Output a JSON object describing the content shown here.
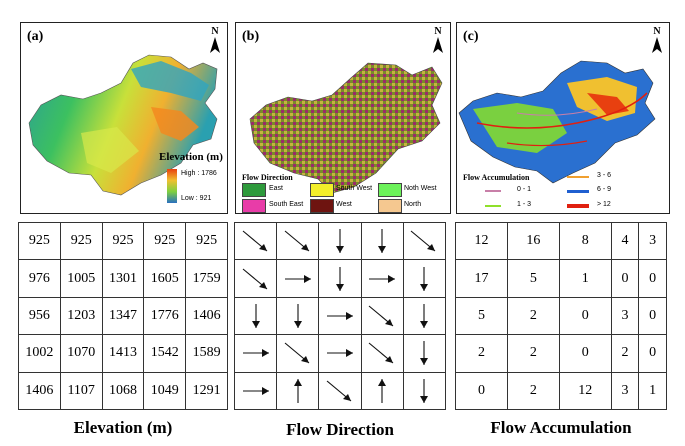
{
  "panel_a": {
    "label": "(a)",
    "north": "N",
    "legend": {
      "title": "Elevation (m)",
      "high": "High : 1786",
      "low": "Low : 921"
    }
  },
  "panel_b": {
    "label": "(b)",
    "north": "N",
    "legend": {
      "title": "Flow Direction",
      "items": [
        {
          "label": "East",
          "color": "#2e9a3c"
        },
        {
          "label": "South West",
          "color": "#f2ee2a"
        },
        {
          "label": "Noth West",
          "color": "#6cf25a"
        },
        {
          "label": "South East",
          "color": "#e83ca8"
        },
        {
          "label": "West",
          "color": "#6e1410"
        },
        {
          "label": "North",
          "color": "#f5c890"
        }
      ]
    }
  },
  "panel_c": {
    "label": "(c)",
    "north": "N",
    "legend": {
      "title": "Flow Accumulation",
      "items": [
        {
          "label": "0 - 1",
          "color": "#c87fa8"
        },
        {
          "label": "1 - 3",
          "color": "#8fe02a"
        },
        {
          "label": "3 - 6",
          "color": "#f0a030"
        },
        {
          "label": "6 - 9",
          "color": "#1f5fd0"
        },
        {
          "label": "> 12",
          "color": "#e02010"
        }
      ]
    }
  },
  "elevation_grid": [
    [
      "925",
      "925",
      "925",
      "925",
      "925"
    ],
    [
      "976",
      "1005",
      "1301",
      "1605",
      "1759"
    ],
    [
      "956",
      "1203",
      "1347",
      "1776",
      "1406"
    ],
    [
      "1002",
      "1070",
      "1413",
      "1542",
      "1589"
    ],
    [
      "1406",
      "1107",
      "1068",
      "1049",
      "1291"
    ]
  ],
  "direction_grid": [
    [
      "SE",
      "SE",
      "S",
      "S",
      "SE"
    ],
    [
      "SE",
      "E",
      "S",
      "E",
      "S"
    ],
    [
      "S",
      "S",
      "E",
      "SE",
      "S"
    ],
    [
      "E",
      "SE",
      "E",
      "SE",
      "S"
    ],
    [
      "E",
      "N",
      "SE",
      "N",
      "S"
    ]
  ],
  "accumulation_grid": [
    [
      "12",
      "16",
      "8",
      "4",
      "3"
    ],
    [
      "17",
      "5",
      "1",
      "0",
      "0"
    ],
    [
      "5",
      "2",
      "0",
      "3",
      "0"
    ],
    [
      "2",
      "2",
      "0",
      "2",
      "0"
    ],
    [
      "0",
      "2",
      "12",
      "3",
      "1"
    ]
  ],
  "captions": {
    "elevation": "Elevation (m)",
    "direction": "Flow Direction",
    "accumulation": "Flow Accumulation"
  }
}
